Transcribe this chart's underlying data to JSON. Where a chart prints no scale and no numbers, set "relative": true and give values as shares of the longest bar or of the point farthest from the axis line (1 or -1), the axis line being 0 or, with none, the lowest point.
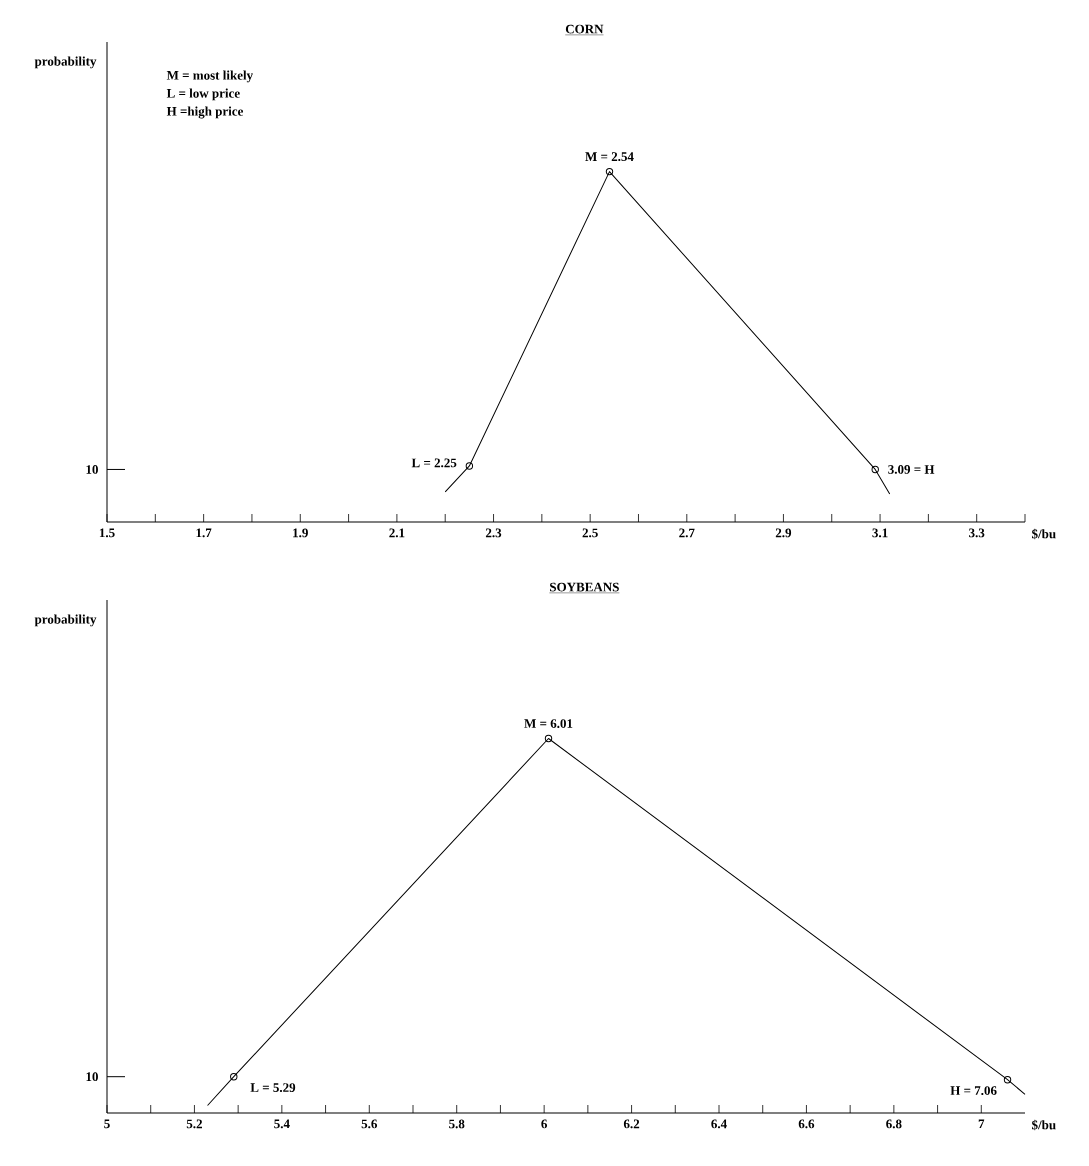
{
  "chart_data": [
    {
      "type": "line",
      "title": "CORN",
      "xlabel": "$/bu",
      "ylabel": "probability",
      "relative": true,
      "xlim": [
        1.5,
        3.4
      ],
      "xticks": [
        1.5,
        {
          "value": 1.6,
          "label": null
        },
        1.7,
        {
          "value": 1.8,
          "label": null
        },
        1.9,
        {
          "value": 2.0,
          "label": null
        },
        2.1,
        {
          "value": 2.2,
          "label": null
        },
        2.3,
        {
          "value": 2.4,
          "label": null
        },
        2.5,
        {
          "value": 2.6,
          "label": null
        },
        2.7,
        {
          "value": 2.8,
          "label": null
        },
        2.9,
        {
          "value": 3.0,
          "label": null
        },
        3.1,
        {
          "value": 3.2,
          "label": null
        },
        3.3,
        {
          "value": 3.4,
          "label": null
        }
      ],
      "series": [
        {
          "color": "#000000",
          "x": [
            2.2,
            2.25,
            2.54,
            3.09,
            3.12
          ],
          "values": [
            0.086,
            0.16,
            1,
            0.15,
            0.08
          ]
        },
        {
          "type": "scatter",
          "color": "#000000",
          "marker": "circle",
          "x": [
            2.25,
            2.54,
            3.09
          ],
          "values": [
            0.16,
            1,
            0.15
          ]
        }
      ],
      "annotations": [
        "M = most likely",
        "L = low price",
        "H =high price",
        "10",
        {
          "text": "M = 2.54",
          "x": 2.54,
          "y": 1
        },
        {
          "text": "L = 2.25",
          "x": 2.25,
          "y": 0.16
        },
        {
          "text": "3.09 = H",
          "x": 3.09,
          "y": 0.15
        }
      ]
    },
    {
      "type": "line",
      "title": "SOYBEANS",
      "xlabel": "$/bu",
      "ylabel": "probability",
      "relative": true,
      "xlim": [
        5,
        7.1
      ],
      "xticks": [
        5,
        {
          "value": 5.1,
          "label": null
        },
        5.2,
        {
          "value": 5.3,
          "label": null
        },
        5.4,
        {
          "value": 5.5,
          "label": null
        },
        5.6,
        {
          "value": 5.7,
          "label": null
        },
        5.8,
        {
          "value": 5.9,
          "label": null
        },
        6,
        {
          "value": 6.1,
          "label": null
        },
        6.2,
        {
          "value": 6.3,
          "label": null
        },
        6.4,
        {
          "value": 6.5,
          "label": null
        },
        6.6,
        {
          "value": 6.7,
          "label": null
        },
        6.8,
        {
          "value": 6.9,
          "label": null
        },
        7
      ],
      "series": [
        {
          "color": "#000000",
          "x": [
            5.23,
            5.29,
            6.01,
            7.06,
            7.1
          ],
          "values": [
            0.02,
            0.097,
            1,
            0.089,
            0.05
          ]
        },
        {
          "type": "scatter",
          "color": "#000000",
          "marker": "circle",
          "x": [
            5.29,
            6.01,
            7.06
          ],
          "values": [
            0.097,
            1,
            0.089
          ]
        }
      ],
      "annotations": [
        "10",
        {
          "text": "M = 6.01",
          "x": 6.01,
          "y": 1
        },
        {
          "text": "L = 5.29",
          "x": 5.29,
          "y": 0.097
        },
        {
          "text": "H = 7.06",
          "x": 7.06,
          "y": 0.089
        }
      ]
    }
  ]
}
